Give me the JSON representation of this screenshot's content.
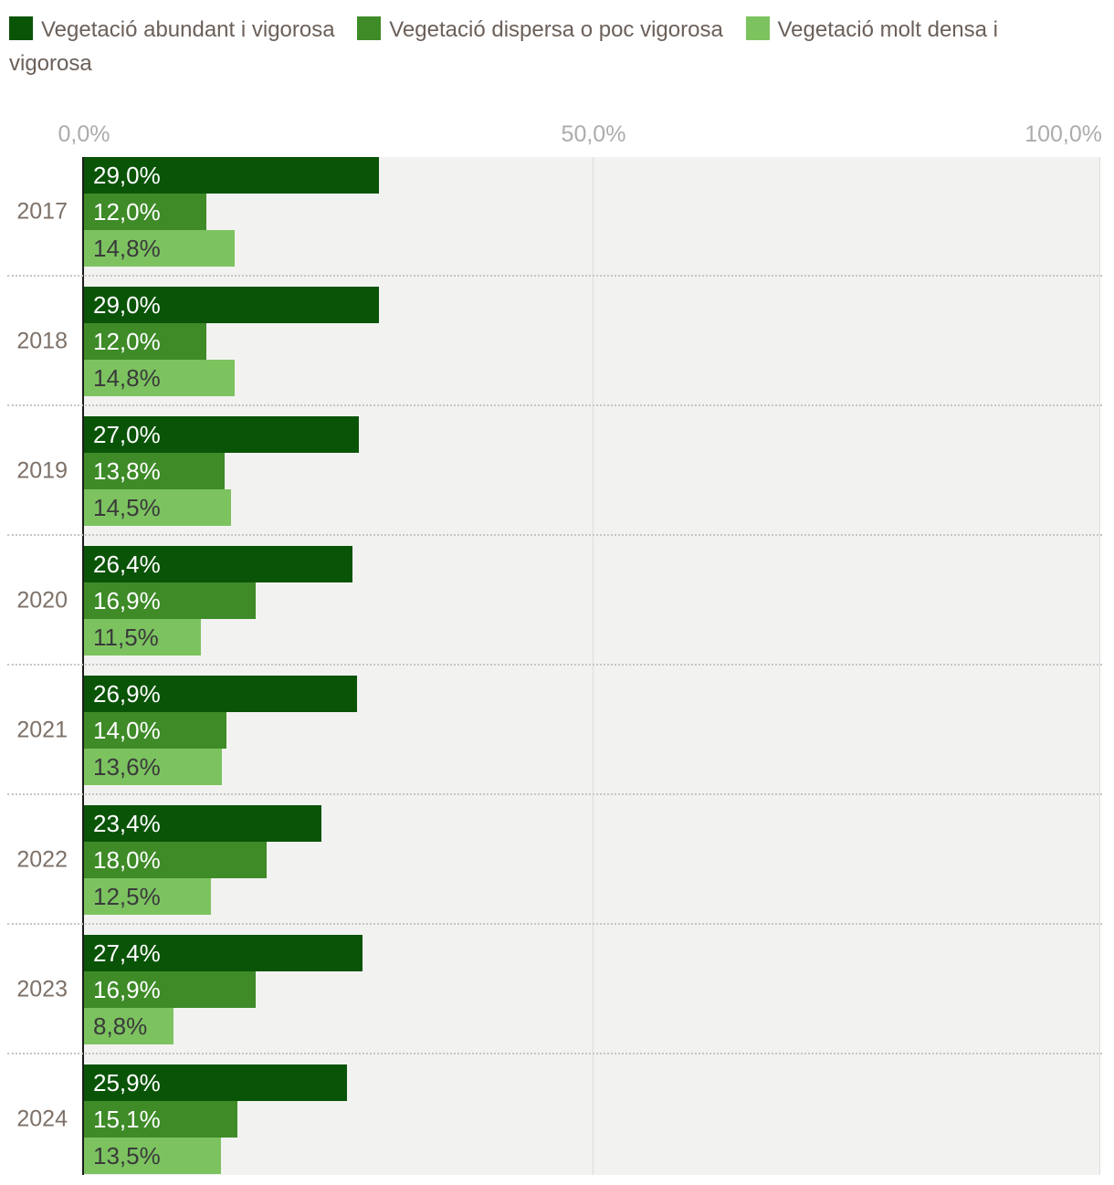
{
  "legend": {
    "items": [
      {
        "label": "Vegetació abundant i vigorosa",
        "color": "#0a5408"
      },
      {
        "label": "Vegetació dispersa o poc vigorosa",
        "color": "#3e8b28"
      },
      {
        "label": "Vegetació molt densa i vigorosa",
        "color": "#7cc360"
      }
    ]
  },
  "axis": {
    "ticks": [
      "0,0%",
      "50,0%",
      "100,0%"
    ]
  },
  "chart_data": {
    "type": "bar",
    "orientation": "horizontal",
    "title": "",
    "xlabel": "",
    "ylabel": "",
    "xlim": [
      0,
      100
    ],
    "gridlines_at": [
      50,
      100
    ],
    "legend_position": "top",
    "categories": [
      "2017",
      "2018",
      "2019",
      "2020",
      "2021",
      "2022",
      "2023",
      "2024"
    ],
    "series": [
      {
        "name": "Vegetació abundant i vigorosa",
        "color": "#0a5408",
        "label_color": "#ffffff",
        "values": [
          29.0,
          29.0,
          27.0,
          26.4,
          26.9,
          23.4,
          27.4,
          25.9
        ],
        "labels": [
          "29,0%",
          "29,0%",
          "27,0%",
          "26,4%",
          "26,9%",
          "23,4%",
          "27,4%",
          "25,9%"
        ]
      },
      {
        "name": "Vegetació dispersa o poc vigorosa",
        "color": "#3e8b28",
        "label_color": "#ffffff",
        "values": [
          12.0,
          12.0,
          13.8,
          16.9,
          14.0,
          18.0,
          16.9,
          15.1
        ],
        "labels": [
          "12,0%",
          "12,0%",
          "13,8%",
          "16,9%",
          "14,0%",
          "18,0%",
          "16,9%",
          "15,1%"
        ]
      },
      {
        "name": "Vegetació molt densa i vigorosa",
        "color": "#7cc360",
        "label_color": "#3a3a3a",
        "values": [
          14.8,
          14.8,
          14.5,
          11.5,
          13.6,
          12.5,
          8.8,
          13.5
        ],
        "labels": [
          "14,8%",
          "14,8%",
          "14,5%",
          "11,5%",
          "13,6%",
          "12,5%",
          "8,8%",
          "13,5%"
        ]
      }
    ]
  },
  "layout_colors": {
    "plot_background": "#f2f2f1",
    "gridline": "#dfddda",
    "axis_line": "#1c1c1c",
    "tick_label": "#aeacaa",
    "year_label": "#7d7168",
    "legend_text": "#6b6059",
    "separator": "#c9c5c0"
  }
}
